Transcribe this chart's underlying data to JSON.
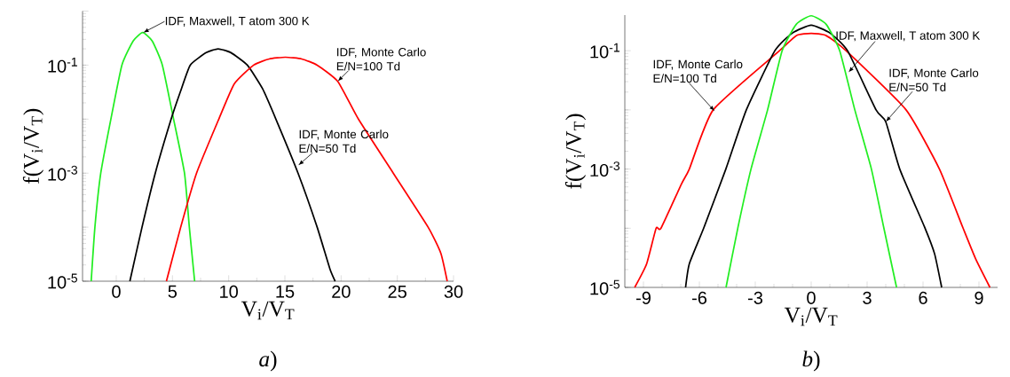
{
  "chart_data": [
    {
      "type": "line",
      "xlabel": "V$_{i}$/V$_{T}$",
      "ylabel": "f(V$_{i}$/V$_{T}$)",
      "log": "y",
      "xlim": [
        -3,
        30
      ],
      "ylim": [
        1e-05,
        1
      ],
      "xticks": [
        0,
        5,
        10,
        15,
        20,
        25,
        30
      ],
      "yticks": [
        {
          "value": 1e-05,
          "label": "10$^{-5}$"
        },
        {
          "value": 0.0001,
          "label": null
        },
        {
          "value": 0.001,
          "label": "10$^{-3}$"
        },
        {
          "value": 0.01,
          "label": null
        },
        {
          "value": 0.1,
          "label": "10$^{-1}$"
        },
        {
          "value": 1,
          "label": null
        }
      ],
      "series": [
        {
          "color": "#22ee22",
          "x": [
            -2.23,
            -1.9,
            -1.38,
            -0.48,
            0.5,
            1.5,
            2.35,
            3.2,
            4.1,
            5.1,
            6.07,
            6.5,
            6.97
          ],
          "values": [
            1e-05,
            0.0001,
            0.001,
            0.01,
            0.1,
            0.28,
            0.4,
            0.28,
            0.1,
            0.01,
            0.001,
            0.0001,
            1e-05
          ]
        },
        {
          "color": "#000000",
          "x": [
            1.21,
            2.29,
            3.47,
            4.88,
            5.7,
            6.58,
            8,
            9.06,
            10.2,
            11.66,
            13,
            14.2,
            16.17,
            17.87,
            19.0,
            19.47
          ],
          "values": [
            1e-05,
            0.0001,
            0.001,
            0.01,
            0.032,
            0.1,
            0.17,
            0.2,
            0.17,
            0.1,
            0.037,
            0.01,
            0.001,
            0.0001,
            1.7e-05,
            1e-05
          ]
        },
        {
          "color": "#ff0000",
          "x": [
            4.46,
            5.73,
            7.14,
            9.12,
            10.5,
            12.22,
            13.6,
            15.04,
            16.5,
            17.87,
            19.7,
            21.54,
            24.64,
            27.74,
            28.87,
            29.44
          ],
          "values": [
            1e-05,
            0.0001,
            0.001,
            0.01,
            0.045,
            0.1,
            0.13,
            0.14,
            0.13,
            0.1,
            0.05,
            0.01,
            0.001,
            0.0001,
            3.3e-05,
            1e-05
          ]
        }
      ],
      "annotations": [
        {
          "text": "IDF, Maxwell, T atom 300 K",
          "x": 2.4,
          "y": 0.4
        },
        {
          "text": "IDF, Monte Carlo E/N=100 Td",
          "x": 19.7,
          "y": 0.05
        },
        {
          "text": "IDF, Monte Carlo E/N=50 Td",
          "x": 16.2,
          "y": 0.0014
        },
        "*a*)"
      ]
    },
    {
      "type": "line",
      "xlabel": "V$_{i}$/V$_{T}$",
      "ylabel": "f(V$_{i}$/V$_{T}$)",
      "log": "y",
      "xlim": [
        -10,
        10
      ],
      "ylim": [
        1e-05,
        0.4
      ],
      "xticks": [
        -9,
        -6,
        -3,
        0,
        3,
        6,
        9
      ],
      "yticks": [
        {
          "value": 1e-05,
          "label": "10$^{-5}$"
        },
        {
          "value": 0.0001,
          "label": null
        },
        {
          "value": 0.001,
          "label": "10$^{-3}$"
        },
        {
          "value": 0.01,
          "label": null
        },
        {
          "value": 0.1,
          "label": "10$^{-1}$"
        }
      ],
      "series": [
        {
          "color": "#ff0000",
          "x": [
            -9.47,
            -8.83,
            -8.32,
            -8.06,
            -6.96,
            -6.54,
            -5.26,
            -1.7,
            -0.8,
            0,
            0.8,
            1.87,
            5.09,
            6.88,
            8.15,
            8.83,
            9.59
          ],
          "values": [
            1e-05,
            2.5e-05,
            0.0001,
            0.0001,
            0.00056,
            0.001,
            0.01,
            0.1,
            0.18,
            0.197,
            0.18,
            0.1,
            0.01,
            0.001,
            0.0001,
            3e-05,
            1e-05
          ]
        },
        {
          "color": "#000000",
          "x": [
            -6.74,
            -6.54,
            -5.77,
            -4.58,
            -3.48,
            -1.95,
            -1,
            0,
            1,
            1.95,
            3.48,
            4.0,
            4.75,
            6.11,
            6.62,
            7.0
          ],
          "values": [
            1e-05,
            2.5e-05,
            0.0001,
            0.001,
            0.01,
            0.1,
            0.2,
            0.27,
            0.2,
            0.1,
            0.01,
            0.0063,
            0.001,
            0.0001,
            3.7e-05,
            1e-05
          ]
        },
        {
          "color": "#22ee22",
          "x": [
            -4.57,
            -3.94,
            -3.23,
            -2.34,
            -1.56,
            -0.8,
            0,
            0.8,
            1.53,
            2.34,
            3.23,
            3.9,
            4.58
          ],
          "values": [
            1e-05,
            0.0001,
            0.001,
            0.01,
            0.1,
            0.28,
            0.39,
            0.28,
            0.1,
            0.01,
            0.001,
            0.0001,
            1e-05
          ]
        }
      ],
      "annotations": [
        {
          "text": "IDF, Monte Carlo E/N=100 Td",
          "x": -5.18,
          "y": 0.0095
        },
        {
          "text": "IDF, Maxwell, T atom 300 K",
          "x": 2.0,
          "y": 0.043
        },
        {
          "text": "IDF, Monte Carlo E/N=50 Td",
          "x": 4.0,
          "y": 0.0063
        },
        "*b*)"
      ]
    }
  ]
}
